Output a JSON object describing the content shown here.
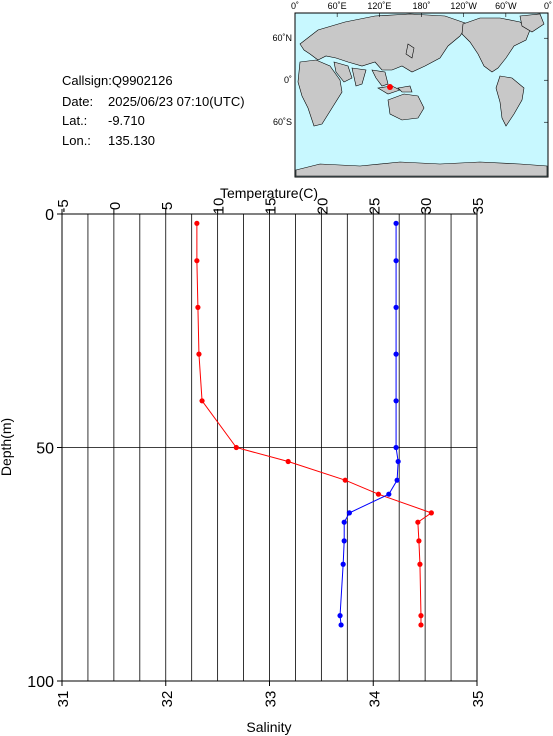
{
  "station": {
    "callsign_label": "Callsign:",
    "callsign": "Q9902126",
    "date_label": "Date:",
    "date": "2025/06/23 07:10(UTC)",
    "lat_label": "Lat.:",
    "lat": "-9.710",
    "lon_label": "Lon.:",
    "lon": "135.130"
  },
  "map": {
    "lon_labels": [
      "0˚",
      "60˚E",
      "120˚E",
      "180˚",
      "120˚W",
      "60˚W",
      "0˚"
    ],
    "lat_labels": [
      "60˚N",
      "0˚",
      "60˚S"
    ],
    "marker_lon": 135.13,
    "marker_lat": -9.71,
    "ocean_color": "#c8f8ff",
    "land_color": "#c8c8c8",
    "marker_color": "#ff0000"
  },
  "chart_data": {
    "type": "line",
    "title": "",
    "ylabel": "Depth(m)",
    "ylim": [
      0,
      100
    ],
    "y_ticks": [
      0,
      50,
      100
    ],
    "y_inverted": true,
    "grid": true,
    "temperature_axis": {
      "label": "Temperature(C)",
      "lim": [
        -5,
        35
      ],
      "ticks": [
        "-5",
        "0",
        "5",
        "10",
        "15",
        "20",
        "25",
        "30",
        "35"
      ]
    },
    "salinity_axis": {
      "label": "Salinity",
      "lim": [
        31,
        35
      ],
      "ticks": [
        "31",
        "32",
        "33",
        "34",
        "35"
      ]
    },
    "series": [
      {
        "color": "#ff0000",
        "axis": "temperature",
        "points": [
          {
            "v": 8.0,
            "depth": 2
          },
          {
            "v": 8.0,
            "depth": 10
          },
          {
            "v": 8.1,
            "depth": 20
          },
          {
            "v": 8.2,
            "depth": 30
          },
          {
            "v": 8.5,
            "depth": 40
          },
          {
            "v": 11.8,
            "depth": 50
          },
          {
            "v": 16.8,
            "depth": 53
          },
          {
            "v": 22.3,
            "depth": 57
          },
          {
            "v": 25.5,
            "depth": 60
          },
          {
            "v": 30.6,
            "depth": 64
          },
          {
            "v": 29.3,
            "depth": 66
          },
          {
            "v": 29.4,
            "depth": 70
          },
          {
            "v": 29.5,
            "depth": 75
          },
          {
            "v": 29.6,
            "depth": 86
          },
          {
            "v": 29.6,
            "depth": 88
          }
        ]
      },
      {
        "color": "#0000ff",
        "axis": "salinity",
        "points": [
          {
            "v": 34.22,
            "depth": 2
          },
          {
            "v": 34.22,
            "depth": 10
          },
          {
            "v": 34.22,
            "depth": 20
          },
          {
            "v": 34.22,
            "depth": 30
          },
          {
            "v": 34.22,
            "depth": 40
          },
          {
            "v": 34.22,
            "depth": 50
          },
          {
            "v": 34.24,
            "depth": 53
          },
          {
            "v": 34.23,
            "depth": 57
          },
          {
            "v": 34.15,
            "depth": 60
          },
          {
            "v": 33.77,
            "depth": 64
          },
          {
            "v": 33.72,
            "depth": 66
          },
          {
            "v": 33.72,
            "depth": 70
          },
          {
            "v": 33.71,
            "depth": 75
          },
          {
            "v": 33.68,
            "depth": 86
          },
          {
            "v": 33.69,
            "depth": 88
          }
        ]
      }
    ]
  }
}
